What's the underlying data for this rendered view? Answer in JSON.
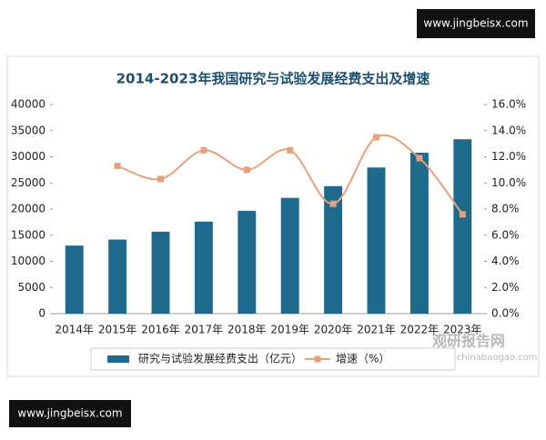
{
  "chart_data": {
    "type": "bar_line",
    "title": "2014-2023年我国研究与试验发展经费支出及增速",
    "categories": [
      "2014年",
      "2015年",
      "2016年",
      "2017年",
      "2018年",
      "2019年",
      "2020年",
      "2021年",
      "2022年",
      "2023年"
    ],
    "series": [
      {
        "name": "研究与试验发展经费支出（亿元）",
        "type": "bar",
        "color": "#1d6a8c",
        "values": [
          13016,
          14170,
          15677,
          17606,
          19678,
          22144,
          24393,
          27956,
          30783,
          33357
        ]
      },
      {
        "name": "增速（%）",
        "type": "line",
        "axis": "y2",
        "color": "#e8a07a",
        "values": [
          null,
          11.3,
          10.3,
          12.5,
          11.0,
          12.5,
          8.4,
          13.5,
          11.9,
          7.6
        ]
      }
    ],
    "ylim": [
      0,
      40000
    ],
    "yticks": [
      0,
      5000,
      10000,
      15000,
      20000,
      25000,
      30000,
      35000,
      40000
    ],
    "y2lim": [
      0,
      16
    ],
    "y2ticks": [
      {
        "value": 0,
        "label": "0.0%"
      },
      {
        "value": 2,
        "label": "2.0%"
      },
      {
        "value": 4,
        "label": "4.0%"
      },
      {
        "value": 6,
        "label": "6.0%"
      },
      {
        "value": 8,
        "label": "8.0%"
      },
      {
        "value": 10,
        "label": "10.0%"
      },
      {
        "value": 12,
        "label": "12.0%"
      },
      {
        "value": 14,
        "label": "14.0%"
      },
      {
        "value": 16,
        "label": "16.0%"
      }
    ],
    "grid": false,
    "legend": "bottom"
  },
  "watermarks": {
    "top": "www.jingbeisx.com",
    "bottom": "www.jingbeisx.com",
    "logo": "观研报告网",
    "logo_url": "www.chinabaogao.com"
  }
}
